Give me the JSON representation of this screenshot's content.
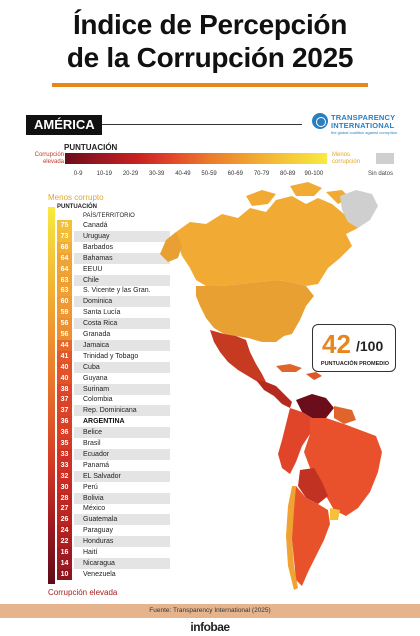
{
  "title_line1": "Índice de Percepción",
  "title_line2": "de la Corrupción 2025",
  "region": "AMÉRICA",
  "logo": {
    "line1": "TRANSPARENCY",
    "line2": "INTERNATIONAL",
    "tagline": "the global coalition against corruption",
    "icon": "globe-icon"
  },
  "legend": {
    "title": "PUNTUACIÓN",
    "left_label": "Corrupción elevada",
    "right_label": "Menos corrupción",
    "no_data": "Sin datos",
    "ticks": [
      "0-9",
      "10-19",
      "20-29",
      "30-39",
      "40-49",
      "50-59",
      "60-69",
      "70-79",
      "80-89",
      "90-100"
    ]
  },
  "list_top_label": "Menos corrupto",
  "list_bottom_label": "Corrupción elevada",
  "col_score": "PUNTUACIÓN",
  "col_country": "PAÍS/TERRITORIO",
  "highlight_country": "ARGENTINA",
  "average": {
    "value": "42",
    "denominator": "/100",
    "label": "PUNTUACIÓN PROMEDIO"
  },
  "colors": {
    "accent": "#e8861e",
    "no_data": "#cfcfcf"
  },
  "footer_source": "Fuente: Transparency International (2025)",
  "footer_brand": "infobae",
  "chart_data": {
    "type": "table",
    "title": "Índice de Percepción de la Corrupción 2025",
    "columns": [
      "PUNTUACIÓN",
      "PAÍS/TERRITORIO"
    ],
    "rows": [
      {
        "country": "Canadá",
        "score": 75
      },
      {
        "country": "Uruguay",
        "score": 73
      },
      {
        "country": "Barbados",
        "score": 68
      },
      {
        "country": "Bahamas",
        "score": 64
      },
      {
        "country": "EEUU",
        "score": 64
      },
      {
        "country": "Chile",
        "score": 63
      },
      {
        "country": "S. Vicente y las Gran.",
        "score": 63
      },
      {
        "country": "Dominica",
        "score": 60
      },
      {
        "country": "Santa Lucía",
        "score": 59
      },
      {
        "country": "Costa Rica",
        "score": 56
      },
      {
        "country": "Granada",
        "score": 56
      },
      {
        "country": "Jamaica",
        "score": 44
      },
      {
        "country": "Trinidad y Tobago",
        "score": 41
      },
      {
        "country": "Cuba",
        "score": 40
      },
      {
        "country": "Guyana",
        "score": 40
      },
      {
        "country": "Surinam",
        "score": 38
      },
      {
        "country": "Colombia",
        "score": 37
      },
      {
        "country": "Rep. Dominicana",
        "score": 37
      },
      {
        "country": "ARGENTINA",
        "score": 36
      },
      {
        "country": "Belice",
        "score": 36
      },
      {
        "country": "Brasil",
        "score": 35
      },
      {
        "country": "Ecuador",
        "score": 33
      },
      {
        "country": "Panamá",
        "score": 33
      },
      {
        "country": "EL Salvador",
        "score": 32
      },
      {
        "country": "Perú",
        "score": 30
      },
      {
        "country": "Bolivia",
        "score": 28
      },
      {
        "country": "México",
        "score": 27
      },
      {
        "country": "Guatemala",
        "score": 26
      },
      {
        "country": "Paraguay",
        "score": 24
      },
      {
        "country": "Honduras",
        "score": 22
      },
      {
        "country": "Haití",
        "score": 16
      },
      {
        "country": "Nicaragua",
        "score": 14
      },
      {
        "country": "Venezuela",
        "score": 10
      }
    ],
    "color_scale_ranges": [
      "0-9",
      "10-19",
      "20-29",
      "30-39",
      "40-49",
      "50-59",
      "60-69",
      "70-79",
      "80-89",
      "90-100"
    ]
  }
}
